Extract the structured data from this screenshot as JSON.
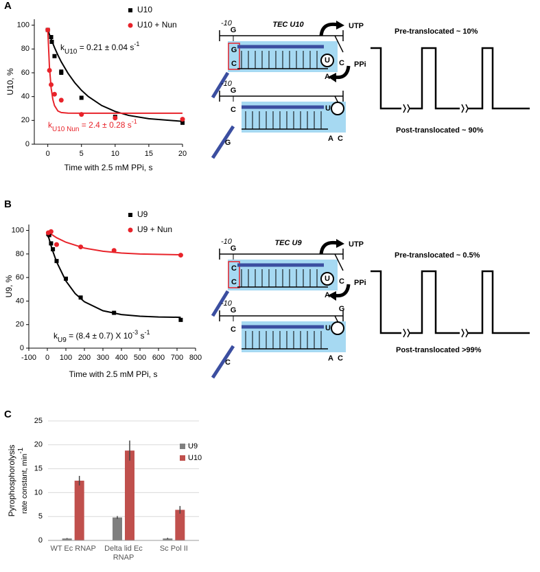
{
  "panels": [
    "A",
    "B",
    "C"
  ],
  "chart_data": [
    {
      "type": "scatter",
      "xlabel": "Time with 2.5 mM PPi, s",
      "ylabel": "U10, %",
      "xlim": [
        -2,
        20
      ],
      "xticks": [
        0,
        5,
        10,
        15,
        20
      ],
      "ylim": [
        0,
        105
      ],
      "yticks": [
        0,
        20,
        40,
        60,
        80,
        100
      ],
      "series": [
        {
          "name": "U10",
          "color": "#000000",
          "marker": "square",
          "x": [
            0,
            0.5,
            0.6,
            1,
            2,
            2,
            5,
            10,
            20
          ],
          "values": [
            96,
            90,
            86,
            74,
            61,
            60,
            39,
            23,
            18
          ]
        },
        {
          "name": "U10 + Nun",
          "color": "#e8232a",
          "marker": "circle",
          "x": [
            0,
            0.25,
            0.5,
            1,
            2,
            5,
            10,
            20
          ],
          "values": [
            96,
            62,
            50,
            42,
            37,
            25,
            22,
            21
          ]
        }
      ],
      "fit_curves": [
        {
          "color": "#000000",
          "x": [
            0,
            0.5,
            1,
            1.5,
            2,
            3,
            4,
            5,
            6,
            8,
            10,
            12,
            15,
            20
          ],
          "values": [
            96,
            88.2,
            81.2,
            74.9,
            69.2,
            59.6,
            51.7,
            45.3,
            40.1,
            32.5,
            27.5,
            24.2,
            21.4,
            19.2
          ]
        },
        {
          "color": "#e8232a",
          "x": [
            0,
            0.25,
            0.5,
            0.75,
            1,
            1.5,
            2,
            3,
            5,
            10,
            20
          ],
          "values": [
            96,
            64.4,
            47.1,
            37.6,
            32.4,
            27.9,
            26.6,
            26.1,
            26,
            26,
            26
          ]
        }
      ],
      "annotations": [
        {
          "color": "#000000",
          "parts": [
            "k",
            "U10",
            " = 0.21 ± 0.04 s",
            "-1"
          ]
        },
        {
          "color": "#e8232a",
          "parts": [
            "k",
            "U10 Nun",
            " = 2.4 ± 0.28 s",
            "-1"
          ]
        }
      ]
    },
    {
      "type": "scatter",
      "xlabel": "Time with 2.5 mM PPi, s",
      "ylabel": "U9, %",
      "xlim": [
        -100,
        800
      ],
      "xticks": [
        -100,
        0,
        100,
        200,
        300,
        400,
        500,
        600,
        700,
        800
      ],
      "ylim": [
        0,
        105
      ],
      "yticks": [
        0,
        20,
        40,
        60,
        80,
        100
      ],
      "series": [
        {
          "name": "U9",
          "color": "#000000",
          "marker": "square",
          "x": [
            5,
            10,
            20,
            30,
            50,
            100,
            180,
            360,
            720
          ],
          "values": [
            97,
            96,
            89,
            84,
            74,
            59,
            43,
            30,
            24
          ]
        },
        {
          "name": "U9 + Nun",
          "color": "#e8232a",
          "marker": "circle",
          "x": [
            5,
            20,
            50,
            180,
            360,
            720
          ],
          "values": [
            98,
            99,
            88,
            86,
            83,
            79
          ]
        }
      ],
      "fit_curves": [
        {
          "color": "#000000",
          "x": [
            0,
            25,
            50,
            100,
            150,
            200,
            300,
            400,
            500,
            600,
            720
          ],
          "values": [
            98,
            84.3,
            73.3,
            57.1,
            46.4,
            39.4,
            31.8,
            28.5,
            27.1,
            26.5,
            26.2
          ]
        },
        {
          "color": "#e8232a",
          "x": [
            0,
            50,
            100,
            200,
            300,
            400,
            500,
            720
          ],
          "values": [
            99,
            93.8,
            90,
            85,
            82.3,
            80.8,
            80,
            79.3
          ]
        }
      ],
      "annotations": [
        {
          "color": "#000000",
          "parts": [
            "k",
            "U9",
            " = (8.4 ± 0.7) X 10",
            "-3",
            " s",
            "-1"
          ]
        }
      ]
    },
    {
      "type": "bar",
      "ylabel": [
        "Pyrophosphorolysis",
        "rate constant, min",
        "-1"
      ],
      "categories": [
        "WT Ec RNAP",
        "Delta lid Ec RNAP",
        "Sc Pol II"
      ],
      "ylim": [
        0,
        25
      ],
      "yticks": [
        0,
        5,
        10,
        15,
        20,
        25
      ],
      "grid": true,
      "series": [
        {
          "name": "U9",
          "color": "#7f7f7f",
          "values": [
            0.4,
            4.8,
            0.4
          ],
          "errors": [
            0.1,
            0.3,
            0.15
          ]
        },
        {
          "name": "U10",
          "color": "#c0504d",
          "values": [
            12.5,
            18.8,
            6.4
          ],
          "errors": [
            1.0,
            2.1,
            0.8
          ]
        }
      ]
    }
  ],
  "diagrams": [
    {
      "pre": {
        "position": "-10",
        "title": "TEC U10",
        "letters": [
          "G",
          "G",
          "C",
          "U",
          "A",
          "C"
        ],
        "ntp": "UTP",
        "ppi": "PPi"
      },
      "post": {
        "position": "-10",
        "letters": [
          "G",
          "C",
          "G",
          "U",
          "A",
          "C"
        ]
      },
      "pre_state": "Pre-translocated  ~ 10%",
      "post_state": "Post-translocated ~ 90%"
    },
    {
      "pre": {
        "position": "-10",
        "title": "TEC U9",
        "letters": [
          "G",
          "C",
          "C",
          "U",
          "A",
          "C"
        ],
        "ntp": "UTP",
        "ppi": "PPi"
      },
      "post": {
        "position": "-10",
        "letters": [
          "G",
          "C",
          "C",
          "U",
          "A",
          "C",
          "G"
        ]
      },
      "pre_state": "Pre-translocated  ~ 0.5%",
      "post_state": "Post-translocated >99%"
    }
  ]
}
